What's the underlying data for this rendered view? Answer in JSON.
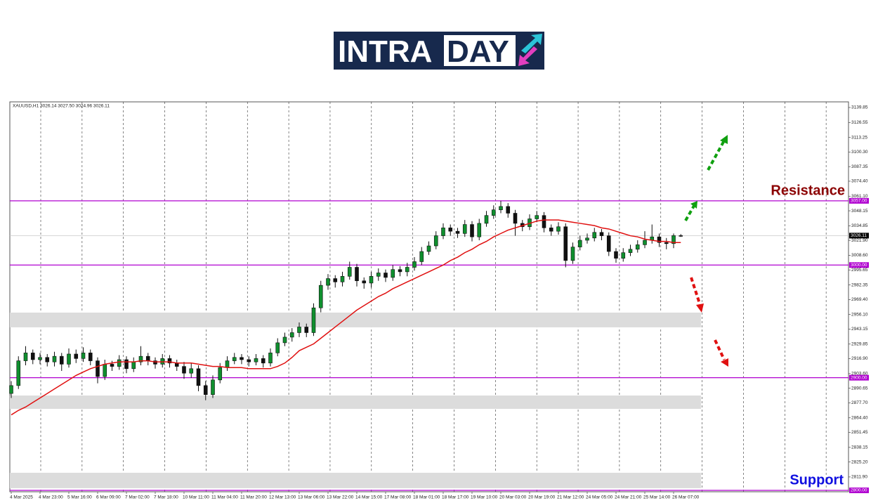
{
  "logo": {
    "left": "INTRA",
    "right": "DAY"
  },
  "chart_data": {
    "type": "candlestick",
    "symbol_info": "XAUUSD,H1  3026.14 3027.50 3024.96 3026.11",
    "categories": [
      "4 Mar 2025",
      null,
      null,
      null,
      "4 Mar 23:00",
      null,
      null,
      null,
      "5 Mar 16:00",
      null,
      null,
      null,
      "6 Mar 09:00",
      null,
      null,
      null,
      "7 Mar 02:00",
      null,
      null,
      null,
      "7 Mar 18:00",
      null,
      null,
      null,
      "10 Mar 11:00",
      null,
      null,
      null,
      "11 Mar 04:00",
      null,
      null,
      null,
      "11 Mar 20:00",
      null,
      null,
      null,
      "12 Mar 13:00",
      null,
      null,
      null,
      "13 Mar 06:00",
      null,
      null,
      null,
      "13 Mar 22:00",
      null,
      null,
      null,
      "14 Mar 15:00",
      null,
      null,
      null,
      "17 Mar 08:00",
      null,
      null,
      null,
      "18 Mar 01:00",
      null,
      null,
      null,
      "18 Mar 17:00",
      null,
      null,
      null,
      "19 Mar 10:00",
      null,
      null,
      null,
      "20 Mar 03:00",
      null,
      null,
      null,
      "20 Mar 19:00",
      null,
      null,
      null,
      "21 Mar 12:00",
      null,
      null,
      null,
      "24 Mar 05:00",
      null,
      null,
      null,
      "24 Mar 21:00",
      null,
      null,
      null,
      "25 Mar 14:00",
      null,
      null,
      null,
      "26 Mar 07:00",
      null
    ],
    "ohlc": [
      [
        2886,
        2897,
        2882,
        2893
      ],
      [
        2893,
        2919,
        2890,
        2915
      ],
      [
        2915,
        2928,
        2911,
        2922
      ],
      [
        2922,
        2925,
        2912,
        2916
      ],
      [
        2916,
        2922,
        2912,
        2918
      ],
      [
        2918,
        2921,
        2910,
        2914
      ],
      [
        2914,
        2923,
        2910,
        2919
      ],
      [
        2919,
        2922,
        2906,
        2912
      ],
      [
        2912,
        2926,
        2909,
        2921
      ],
      [
        2921,
        2925,
        2913,
        2917
      ],
      [
        2917,
        2927,
        2914,
        2922
      ],
      [
        2922,
        2925,
        2911,
        2915
      ],
      [
        2915,
        2918,
        2895,
        2901
      ],
      [
        2901,
        2916,
        2898,
        2912
      ],
      [
        2912,
        2915,
        2906,
        2910
      ],
      [
        2910,
        2920,
        2907,
        2916
      ],
      [
        2916,
        2919,
        2904,
        2908
      ],
      [
        2908,
        2918,
        2905,
        2914
      ],
      [
        2914,
        2928,
        2911,
        2919
      ],
      [
        2919,
        2922,
        2911,
        2915
      ],
      [
        2915,
        2918,
        2908,
        2912
      ],
      [
        2912,
        2921,
        2909,
        2917
      ],
      [
        2917,
        2920,
        2909,
        2913
      ],
      [
        2913,
        2916,
        2906,
        2910
      ],
      [
        2910,
        2914,
        2899,
        2904
      ],
      [
        2904,
        2913,
        2900,
        2908
      ],
      [
        2908,
        2911,
        2888,
        2893
      ],
      [
        2893,
        2897,
        2880,
        2885
      ],
      [
        2885,
        2902,
        2882,
        2898
      ],
      [
        2898,
        2913,
        2895,
        2909
      ],
      [
        2909,
        2919,
        2906,
        2915
      ],
      [
        2915,
        2922,
        2912,
        2918
      ],
      [
        2918,
        2921,
        2912,
        2916
      ],
      [
        2916,
        2919,
        2910,
        2914
      ],
      [
        2914,
        2921,
        2911,
        2917
      ],
      [
        2917,
        2920,
        2909,
        2913
      ],
      [
        2913,
        2926,
        2910,
        2922
      ],
      [
        2922,
        2935,
        2919,
        2931
      ],
      [
        2931,
        2940,
        2928,
        2936
      ],
      [
        2936,
        2944,
        2932,
        2940
      ],
      [
        2940,
        2949,
        2936,
        2945
      ],
      [
        2945,
        2948,
        2936,
        2940
      ],
      [
        2940,
        2966,
        2937,
        2962
      ],
      [
        2962,
        2986,
        2958,
        2982
      ],
      [
        2982,
        2992,
        2978,
        2988
      ],
      [
        2988,
        2991,
        2980,
        2985
      ],
      [
        2985,
        2994,
        2981,
        2990
      ],
      [
        2990,
        3003,
        2987,
        2998
      ],
      [
        2998,
        3001,
        2981,
        2986
      ],
      [
        2986,
        2989,
        2979,
        2984
      ],
      [
        2984,
        2994,
        2980,
        2990
      ],
      [
        2990,
        2997,
        2986,
        2993
      ],
      [
        2993,
        2996,
        2985,
        2989
      ],
      [
        2989,
        3000,
        2986,
        2996
      ],
      [
        2996,
        2999,
        2990,
        2994
      ],
      [
        2994,
        3002,
        2990,
        2998
      ],
      [
        2998,
        3007,
        2995,
        3003
      ],
      [
        3003,
        3016,
        3000,
        3012
      ],
      [
        3012,
        3021,
        3009,
        3017
      ],
      [
        3017,
        3030,
        3014,
        3026
      ],
      [
        3026,
        3037,
        3023,
        3033
      ],
      [
        3033,
        3036,
        3026,
        3030
      ],
      [
        3030,
        3033,
        3024,
        3028
      ],
      [
        3028,
        3040,
        3025,
        3036
      ],
      [
        3036,
        3039,
        3021,
        3025
      ],
      [
        3025,
        3041,
        3022,
        3037
      ],
      [
        3037,
        3048,
        3034,
        3044
      ],
      [
        3044,
        3053,
        3041,
        3049
      ],
      [
        3049,
        3057,
        3046,
        3052
      ],
      [
        3052,
        3055,
        3042,
        3046
      ],
      [
        3046,
        3049,
        3026,
        3037
      ],
      [
        3037,
        3040,
        3030,
        3034
      ],
      [
        3034,
        3045,
        3031,
        3041
      ],
      [
        3041,
        3048,
        3038,
        3044
      ],
      [
        3044,
        3047,
        3029,
        3033
      ],
      [
        3033,
        3036,
        3026,
        3030
      ],
      [
        3030,
        3038,
        3027,
        3034
      ],
      [
        3034,
        3037,
        2998,
        3004
      ],
      [
        3004,
        3020,
        3001,
        3016
      ],
      [
        3016,
        3026,
        3013,
        3022
      ],
      [
        3022,
        3028,
        3019,
        3024
      ],
      [
        3024,
        3033,
        3021,
        3029
      ],
      [
        3029,
        3032,
        3022,
        3026
      ],
      [
        3026,
        3029,
        3008,
        3012
      ],
      [
        3012,
        3015,
        3002,
        3006
      ],
      [
        3006,
        3015,
        3003,
        3011
      ],
      [
        3011,
        3018,
        3008,
        3014
      ],
      [
        3014,
        3022,
        3011,
        3018
      ],
      [
        3018,
        3030,
        3015,
        3022
      ],
      [
        3022,
        3036,
        3019,
        3025
      ],
      [
        3025,
        3028,
        3016,
        3020
      ],
      [
        3020,
        3024,
        3014,
        3019
      ],
      [
        3019,
        3028,
        3015,
        3026.14
      ],
      [
        3026.14,
        3027.5,
        3024.96,
        3026.11
      ]
    ],
    "bull_color": "#0f8f2e",
    "bear_color": "#111111",
    "ma": {
      "color": "#e01010",
      "values": [
        2867,
        2871,
        2874,
        2878,
        2882,
        2886,
        2890,
        2894,
        2898,
        2902,
        2905,
        2908,
        2910,
        2912,
        2913,
        2914,
        2914,
        2914,
        2915,
        2915,
        2914,
        2914,
        2914,
        2913,
        2913,
        2913,
        2912,
        2911,
        2910,
        2910,
        2909,
        2909,
        2909,
        2908,
        2908,
        2908,
        2908,
        2910,
        2913,
        2918,
        2924,
        2927,
        2930,
        2935,
        2940,
        2945,
        2950,
        2955,
        2960,
        2964,
        2968,
        2972,
        2975,
        2979,
        2982,
        2985,
        2988,
        2991,
        2994,
        2997,
        3000,
        3004,
        3007,
        3011,
        3014,
        3018,
        3021,
        3025,
        3028,
        3031,
        3033,
        3035,
        3037,
        3039,
        3040,
        3040,
        3040,
        3039,
        3038,
        3037,
        3036,
        3035,
        3033,
        3032,
        3030,
        3028,
        3026,
        3025,
        3023,
        3022,
        3021,
        3021,
        3020,
        3020
      ]
    },
    "ylim": [
      2798.75,
      3144.84
    ],
    "yticks": [
      3139.85,
      3126.55,
      3113.25,
      {
        "value": 3100.3,
        "label": "3100.30"
      },
      3087.35,
      {
        "value": 3074.4,
        "label": "3074.40"
      },
      {
        "value": 3061.1,
        "label": "3061.10"
      },
      3048.15,
      3034.85,
      {
        "value": 3021.9,
        "label": "3021.90"
      },
      {
        "value": 3008.6,
        "label": "3008.60"
      },
      2995.65,
      2982.35,
      {
        "value": 2969.4,
        "label": "2969.40"
      },
      {
        "value": 2956.1,
        "label": "2956.10"
      },
      2943.15,
      2929.85,
      {
        "value": 2916.9,
        "label": "2916.90"
      },
      {
        "value": 2903.6,
        "label": "2903.60"
      },
      2890.65,
      {
        "value": 2877.7,
        "label": "2877.70"
      },
      {
        "value": 2864.4,
        "label": "2864.40"
      },
      2851.45,
      2838.15,
      {
        "value": 2825.2,
        "label": "2825.20"
      },
      {
        "value": 2811.9,
        "label": "2811.90"
      }
    ],
    "level_color": "#b000d0",
    "levels": [
      {
        "value": 3057,
        "label": "3057.00"
      },
      {
        "value": 3000,
        "label": "3000.00"
      },
      {
        "value": 2900,
        "label": "2900.00"
      },
      {
        "value": 2800,
        "label": "2800.00"
      }
    ],
    "current_price": 3026.11,
    "zones": [
      [
        2944.7,
        2957.8
      ],
      [
        2872.3,
        2884.2
      ],
      [
        2801.9,
        2815.6
      ]
    ],
    "annotations": {
      "resistance": "Resistance",
      "support": "Support"
    }
  }
}
